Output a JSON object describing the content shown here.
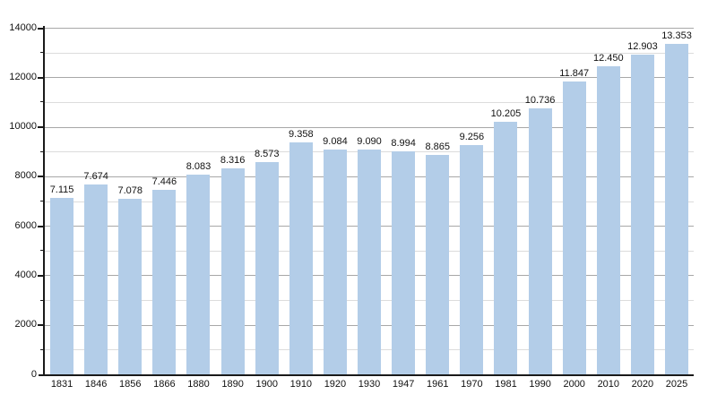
{
  "chart_data": {
    "type": "bar",
    "title": "",
    "xlabel": "",
    "ylabel": "",
    "categories": [
      "1831",
      "1846",
      "1856",
      "1866",
      "1880",
      "1890",
      "1900",
      "1910",
      "1920",
      "1930",
      "1947",
      "1961",
      "1970",
      "1981",
      "1990",
      "2000",
      "2010",
      "2020",
      "2025"
    ],
    "values": [
      7115,
      7674,
      7078,
      7446,
      8083,
      8316,
      8573,
      9358,
      9084,
      9090,
      8994,
      8865,
      9256,
      10205,
      10736,
      11847,
      12450,
      12903,
      13353
    ],
    "bar_labels": [
      "7.115",
      "7.674",
      "7.078",
      "7.446",
      "8.083",
      "8.316",
      "8.573",
      "9.358",
      "9.084",
      "9.090",
      "8.994",
      "8.865",
      "9.256",
      "10.205",
      "10.736",
      "11.847",
      "12.450",
      "12.903",
      "13.353"
    ],
    "ylim": [
      0,
      14000
    ],
    "ytick_labels": [
      "0",
      "2000",
      "4000",
      "6000",
      "8000",
      "10000",
      "12000",
      "14000"
    ],
    "ytick_major_interval": 2000,
    "ytick_minor_interval": 1000,
    "grid": "horizontal-only",
    "legend": null,
    "colors": {
      "bar_fill": "#b3cde8",
      "gridline_major": "#a8a8a8",
      "gridline_minor": "#dcdcdc",
      "axis": "#1a1a1a",
      "text": "#111111",
      "background": "#ffffff"
    }
  }
}
